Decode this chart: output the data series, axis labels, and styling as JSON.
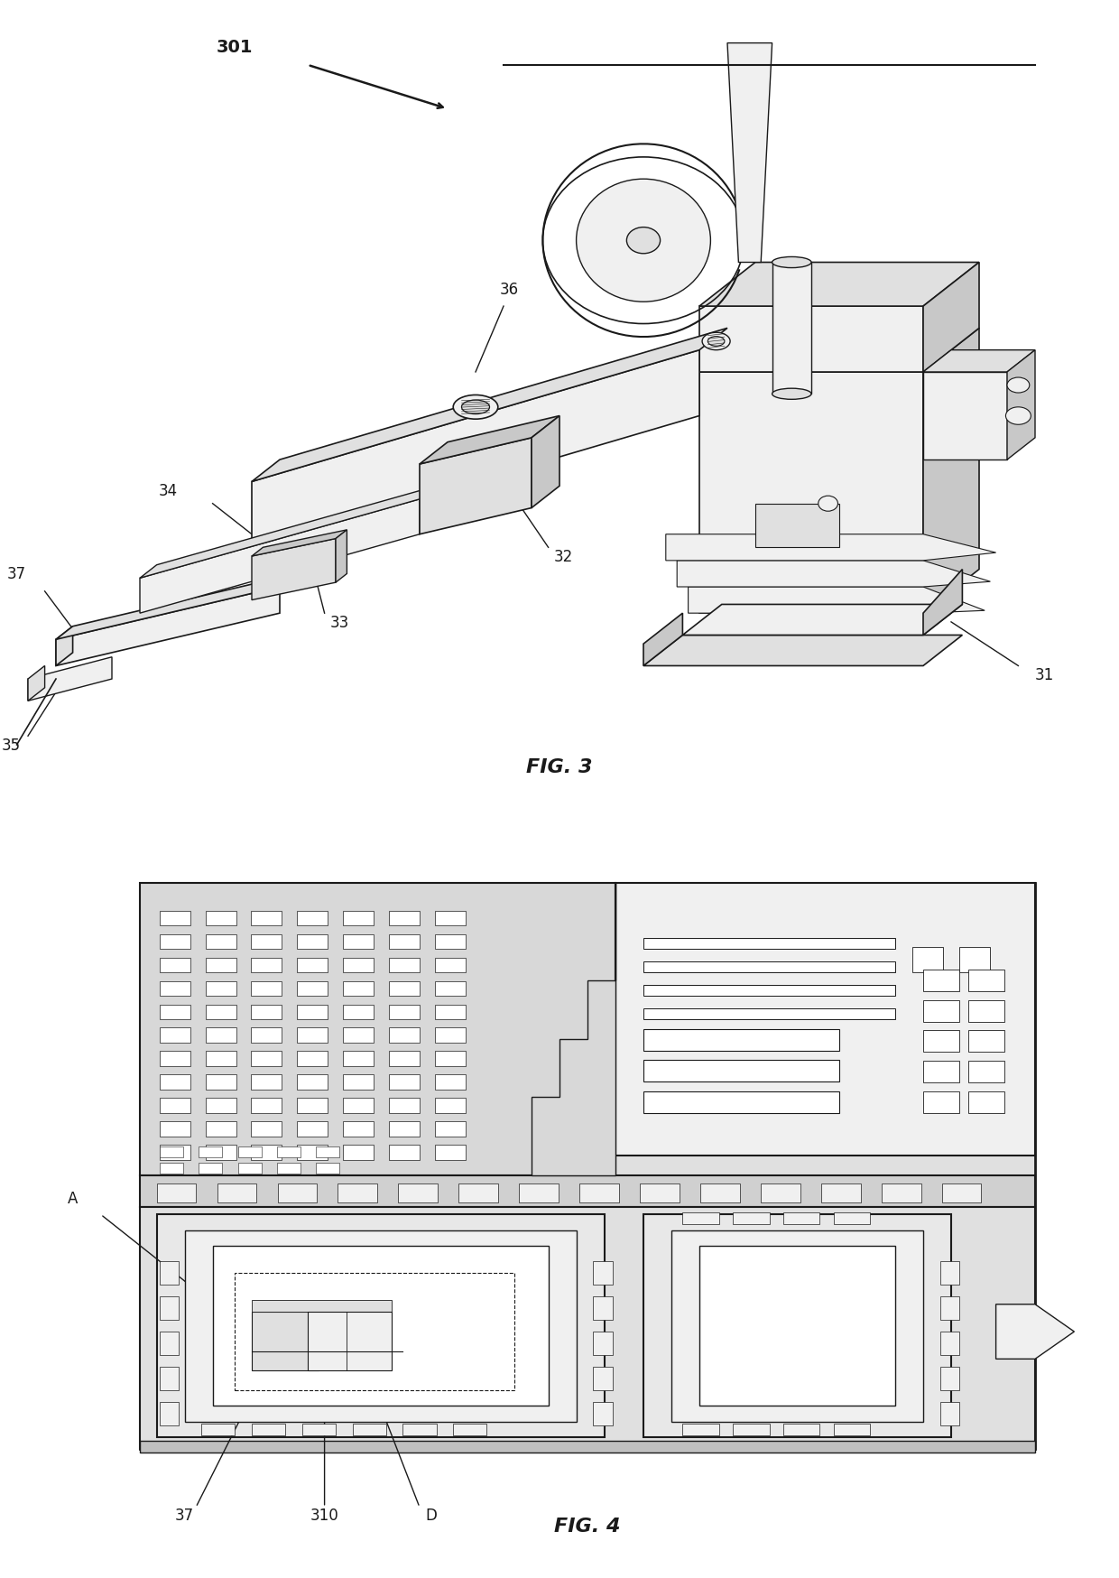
{
  "fig3_label": "FIG. 3",
  "fig4_label": "FIG. 4",
  "ref301": "301",
  "ref31": "31",
  "ref32": "32",
  "ref33": "33",
  "ref34": "34",
  "ref35": "35",
  "ref36": "36",
  "ref37_fig3": "37",
  "ref37_fig4": "37",
  "refA": "A",
  "ref310": "310",
  "refD": "D",
  "bg_color": "#ffffff",
  "lc": "#1a1a1a",
  "fc_white": "#ffffff",
  "fc_light": "#f0f0f0",
  "fc_med": "#e0e0e0",
  "fc_dark": "#c8c8c8"
}
